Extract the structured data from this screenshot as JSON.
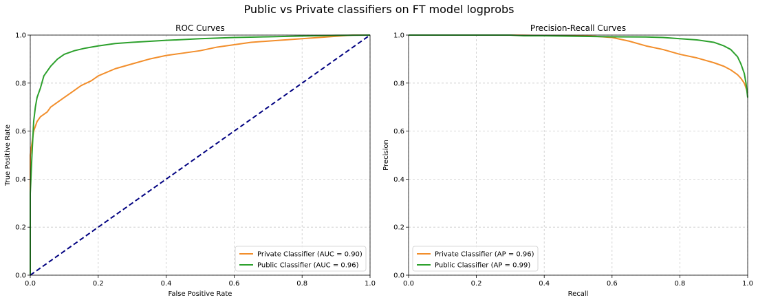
{
  "suptitle": "Public vs Private classifiers on FT model logprobs",
  "colors": {
    "private": "#f28e2b",
    "public": "#2ca02c",
    "diagonal": "#000080",
    "grid": "#c8c8c8"
  },
  "chart_data": [
    {
      "type": "line",
      "title": "ROC Curves",
      "xlabel": "False Positive Rate",
      "ylabel": "True Positive Rate",
      "xlim": [
        0,
        1
      ],
      "ylim": [
        0,
        1
      ],
      "xticks": [
        "0.0",
        "0.2",
        "0.4",
        "0.6",
        "0.8",
        "1.0"
      ],
      "yticks": [
        "0.0",
        "0.2",
        "0.4",
        "0.6",
        "0.8",
        "1.0"
      ],
      "grid": true,
      "legend_position": "lower-right",
      "series": [
        {
          "name": "Private Classifier (AUC = 0.90)",
          "color": "#f28e2b",
          "style": "solid",
          "x": [
            0.0,
            0.0,
            0.005,
            0.01,
            0.015,
            0.02,
            0.03,
            0.04,
            0.05,
            0.06,
            0.08,
            0.1,
            0.12,
            0.15,
            0.18,
            0.2,
            0.25,
            0.3,
            0.35,
            0.4,
            0.45,
            0.5,
            0.55,
            0.6,
            0.65,
            0.7,
            0.75,
            0.8,
            0.85,
            0.9,
            0.95,
            1.0
          ],
          "y": [
            0.0,
            0.5,
            0.55,
            0.6,
            0.62,
            0.64,
            0.66,
            0.67,
            0.68,
            0.7,
            0.72,
            0.74,
            0.76,
            0.79,
            0.81,
            0.83,
            0.86,
            0.88,
            0.9,
            0.915,
            0.925,
            0.935,
            0.95,
            0.96,
            0.97,
            0.975,
            0.98,
            0.985,
            0.99,
            0.995,
            1.0,
            1.0
          ]
        },
        {
          "name": "Public Classifier (AUC = 0.96)",
          "color": "#2ca02c",
          "style": "solid",
          "x": [
            0.0,
            0.0,
            0.005,
            0.01,
            0.015,
            0.02,
            0.03,
            0.04,
            0.05,
            0.06,
            0.08,
            0.1,
            0.13,
            0.16,
            0.2,
            0.25,
            0.3,
            0.4,
            0.5,
            0.6,
            0.7,
            0.8,
            0.9,
            1.0
          ],
          "y": [
            0.0,
            0.34,
            0.5,
            0.64,
            0.7,
            0.74,
            0.78,
            0.83,
            0.85,
            0.87,
            0.9,
            0.92,
            0.935,
            0.945,
            0.955,
            0.965,
            0.97,
            0.978,
            0.985,
            0.99,
            0.993,
            0.996,
            0.999,
            1.0
          ]
        },
        {
          "name": "",
          "color": "#000080",
          "style": "dashed",
          "x": [
            0.0,
            1.0
          ],
          "y": [
            0.0,
            1.0
          ]
        }
      ]
    },
    {
      "type": "line",
      "title": "Precision-Recall Curves",
      "xlabel": "Recall",
      "ylabel": "Precision",
      "xlim": [
        0,
        1
      ],
      "ylim": [
        0,
        1
      ],
      "xticks": [
        "0.0",
        "0.2",
        "0.4",
        "0.6",
        "0.8",
        "1.0"
      ],
      "yticks": [
        "0.0",
        "0.2",
        "0.4",
        "0.6",
        "0.8",
        "1.0"
      ],
      "grid": true,
      "legend_position": "lower-left",
      "series": [
        {
          "name": "Private Classifier (AP = 0.96)",
          "color": "#f28e2b",
          "style": "solid",
          "x": [
            0.0,
            0.1,
            0.2,
            0.3,
            0.4,
            0.5,
            0.55,
            0.6,
            0.65,
            0.7,
            0.75,
            0.8,
            0.85,
            0.9,
            0.93,
            0.95,
            0.97,
            0.98,
            0.99,
            1.0
          ],
          "y": [
            1.0,
            1.0,
            1.0,
            1.0,
            0.998,
            0.997,
            0.995,
            0.99,
            0.975,
            0.955,
            0.94,
            0.92,
            0.905,
            0.885,
            0.87,
            0.855,
            0.835,
            0.82,
            0.8,
            0.76
          ]
        },
        {
          "name": "Public Classifier (AP = 0.99)",
          "color": "#2ca02c",
          "style": "solid",
          "x": [
            0.0,
            0.1,
            0.2,
            0.3,
            0.34,
            0.4,
            0.5,
            0.6,
            0.7,
            0.75,
            0.8,
            0.85,
            0.9,
            0.93,
            0.95,
            0.97,
            0.98,
            0.99,
            0.995,
            1.0
          ],
          "y": [
            1.0,
            1.0,
            1.0,
            1.0,
            0.997,
            0.997,
            0.995,
            0.993,
            0.992,
            0.99,
            0.985,
            0.98,
            0.97,
            0.955,
            0.94,
            0.91,
            0.88,
            0.84,
            0.8,
            0.74
          ]
        }
      ]
    }
  ]
}
